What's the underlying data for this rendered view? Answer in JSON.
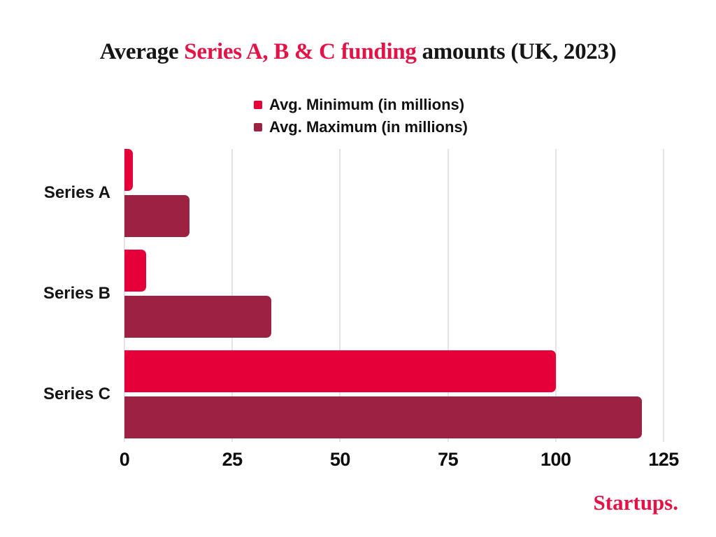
{
  "title": {
    "prefix": "Average ",
    "highlight": "Series A, B & C funding",
    "suffix": " amounts (UK, 2023)"
  },
  "branding": {
    "logo": "Startups."
  },
  "colors": {
    "accent_red": "#E60039",
    "dark_maroon": "#9D2142",
    "title_highlight": "#E51245",
    "gridline": "#e4e4e4",
    "text": "#151515"
  },
  "chart_data": {
    "type": "bar",
    "orientation": "horizontal",
    "title": "Average Series A, B & C funding amounts (UK, 2023)",
    "categories": [
      "Series A",
      "Series B",
      "Series C"
    ],
    "series": [
      {
        "name": "Avg. Minimum (in millions)",
        "color": "#E60039",
        "values": [
          2,
          5,
          100
        ]
      },
      {
        "name": "Avg. Maximum (in millions)",
        "color": "#9D2142",
        "values": [
          15,
          34,
          120
        ]
      }
    ],
    "xlabel": "",
    "ylabel": "",
    "xlim": [
      0,
      125
    ],
    "xticks": [
      0,
      25,
      50,
      75,
      100,
      125
    ],
    "grid": "vertical",
    "legend_position": "top"
  }
}
